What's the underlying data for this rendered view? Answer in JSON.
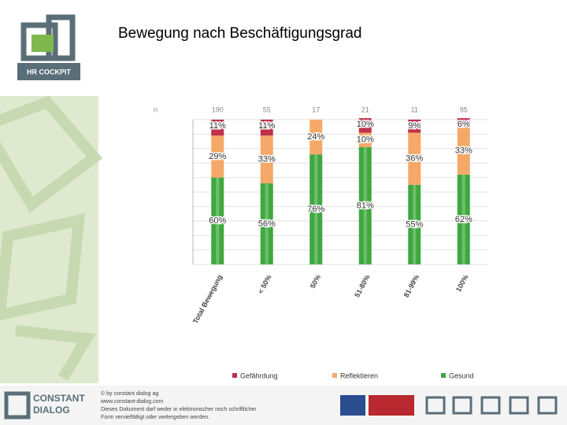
{
  "header": {
    "title": "Bewegung nach Beschäftigungsgrad",
    "logo": "HR COCKPIT"
  },
  "chart_data": {
    "type": "stacked_bar",
    "n_label": "n",
    "n_values": [
      "190",
      "55",
      "17",
      "21",
      "11",
      "95"
    ],
    "categories": [
      "Total Bewegung",
      "< 50%",
      "50%",
      "51-80%",
      "81-99%",
      "100%"
    ],
    "ylim": [
      0,
      100
    ],
    "series": [
      {
        "name": "Gefährdung",
        "color": "#c0304a",
        "values": [
          11,
          11,
          0,
          10,
          9,
          6
        ],
        "value_labels": [
          "11%",
          "11%",
          null,
          "10%",
          "9%",
          "6%"
        ]
      },
      {
        "name": "Reflektieren",
        "color": "#f5a868",
        "values": [
          29,
          33,
          24,
          10,
          36,
          33
        ],
        "value_labels": [
          "29%",
          "33%",
          "24%",
          "10%",
          "36%",
          "33%"
        ]
      },
      {
        "name": "Gesund",
        "color": "#3fa83f",
        "values": [
          60,
          56,
          76,
          81,
          55,
          62
        ],
        "value_labels": [
          "60%",
          "56%",
          "76%",
          "81%",
          "55%",
          "62%"
        ]
      }
    ]
  },
  "footer": {
    "brand_line1": "CONSTANT",
    "brand_line2": "DIALOG",
    "lines": [
      "© by constant dialog ag",
      "www.constant-dialog.com",
      "Dieses Dokument darf weder in elektronischer noch schriftlicher",
      "Form vervielfältigt oder weitergeben werden."
    ]
  }
}
